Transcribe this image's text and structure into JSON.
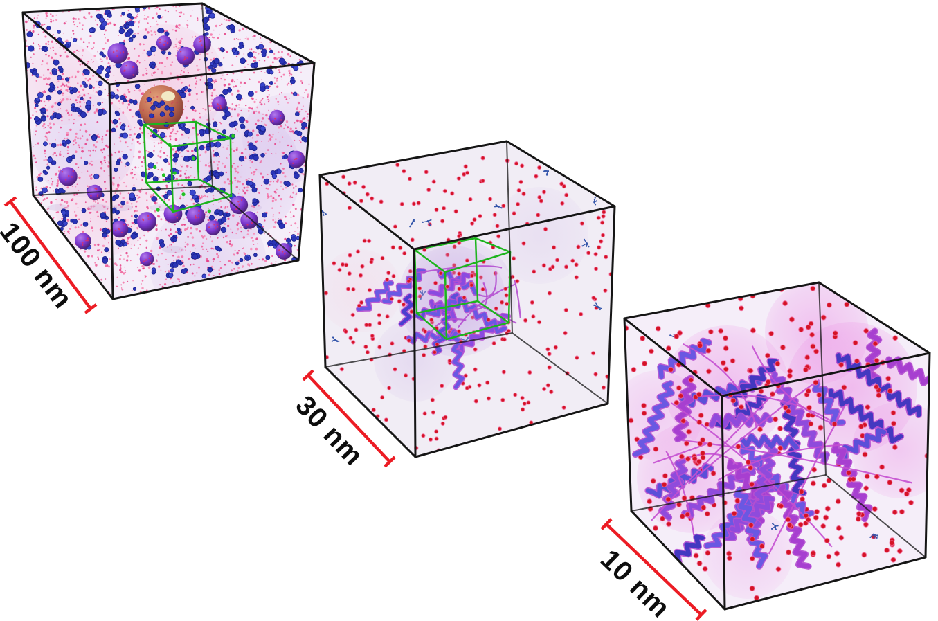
{
  "panels": [
    {
      "id": "100nm",
      "scale_label": "100 nm",
      "zoom_marker": "green-wireframe-cube",
      "contents": [
        "pink-metabolite-speckles",
        "blue-macromolecule-particles",
        "purple-ribosome-spheres",
        "orange-macrocomplex-sphere",
        "green-zoom-subcube"
      ]
    },
    {
      "id": "30nm",
      "scale_label": "30 nm",
      "zoom_marker": "green-wireframe-cube",
      "contents": [
        "red-solute-dots",
        "blue-small-molecules",
        "purple-protein-ribbon-cluster",
        "green-zoom-subcube"
      ]
    },
    {
      "id": "10nm",
      "scale_label": "10 nm",
      "zoom_marker": "none",
      "contents": [
        "purple-protein-ribbons",
        "red-solute-dots",
        "blue-small-molecules",
        "magenta-density-glow"
      ]
    }
  ],
  "colors": {
    "background": "#ffffff",
    "cube_edge": "#151515",
    "subcube_green": "#1db41d",
    "scale_bar_red": "#ec1c24",
    "label_text": "#0d0d0d",
    "metabolite_pink": "#ee5590",
    "protein_blue": "#2a34b6",
    "sphere_purple": "#7a35cc",
    "complex_orange": "#c06a50",
    "complex_highlight": "#f2e9c4",
    "solute_red": "#d41326",
    "ribbon_violet": "#5b4fd8",
    "ribbon_magenta": "#b44fd0",
    "molecule_blue": "#3355aa",
    "face_tint": "#f5eef9",
    "glow_magenta": "#e87ae0",
    "glow_lavender": "#c9aee6"
  },
  "render": {
    "seed": 7,
    "p1": {
      "speckles": 2300,
      "blue_blobs": 330,
      "green_dots": 9
    },
    "p2": {
      "red_dots_back": 205,
      "red_dots_front": 65,
      "molecules": 11,
      "helices": 13,
      "tendrils": 8
    },
    "p3": {
      "red_dots_back": 70,
      "red_dots_front_scatter": 85,
      "red_dots_on_ribbons": 95,
      "molecules": 3,
      "helices": 30,
      "tendrils": 12
    }
  }
}
